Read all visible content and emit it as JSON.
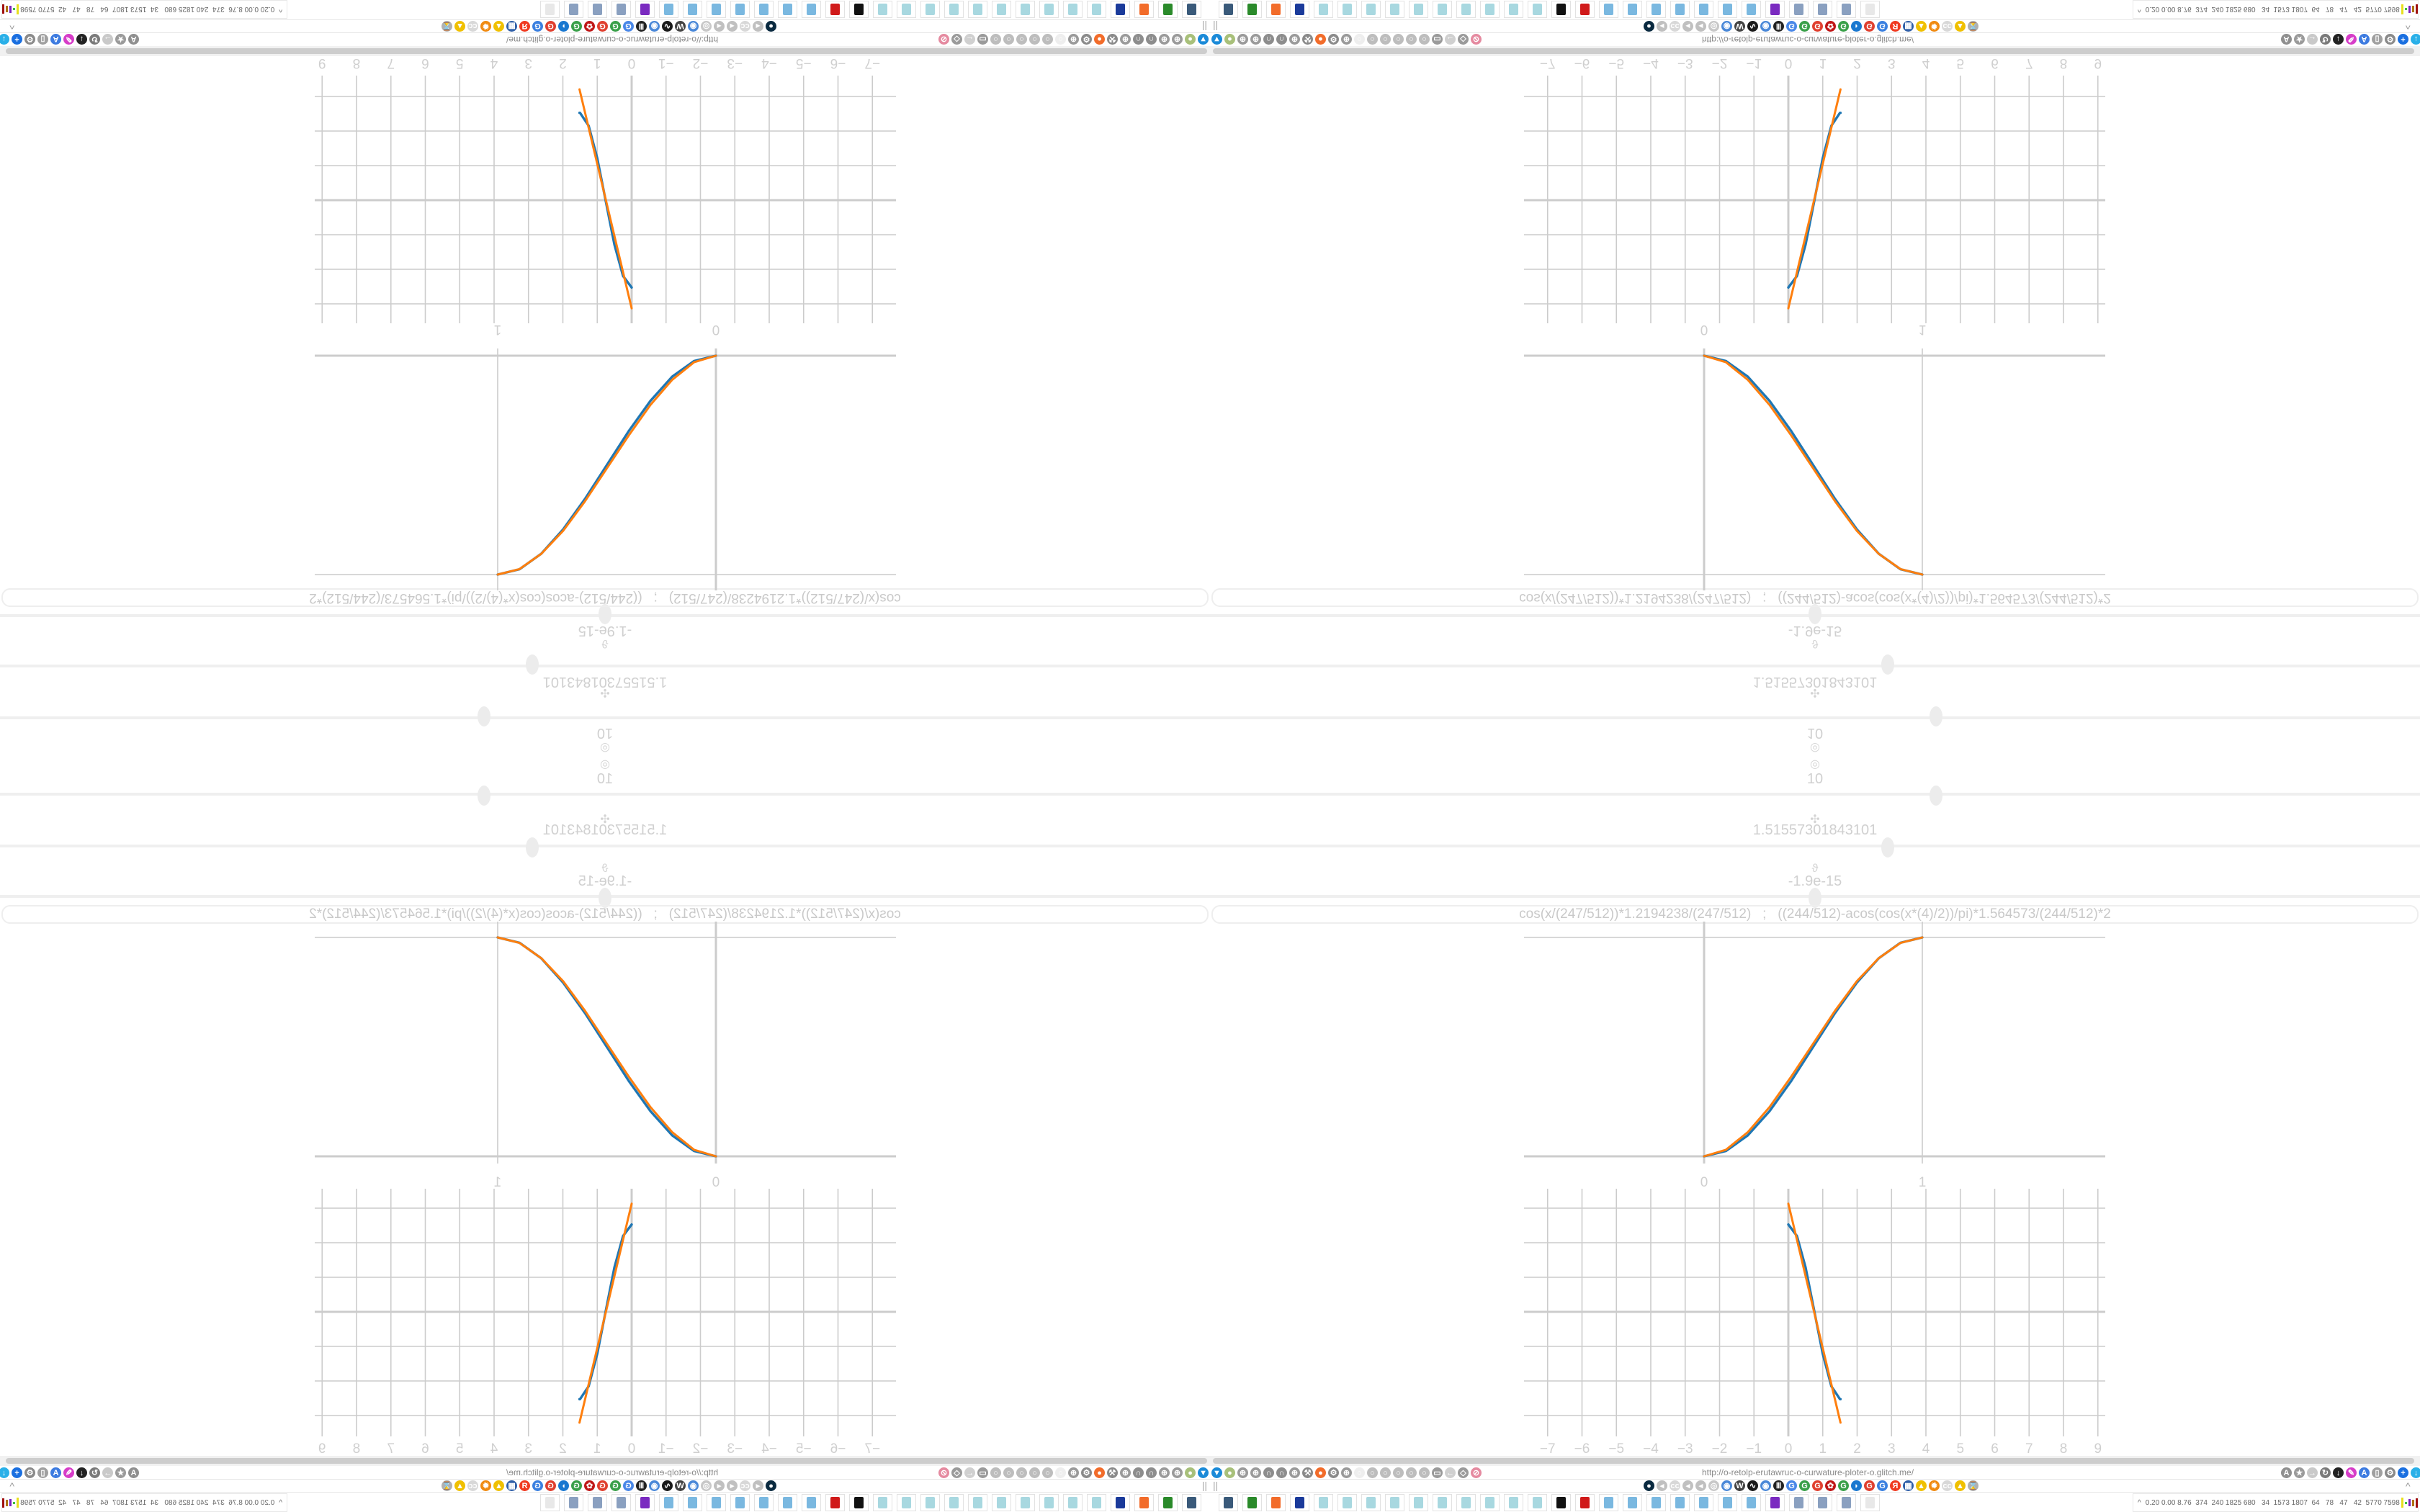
{
  "sliders": [
    {
      "icon": "target-icon",
      "glyph": "◎",
      "value": "10",
      "position": 0.6
    },
    {
      "icon": "clover-icon",
      "glyph": "✣",
      "value": "1.51557301843101",
      "position": 0.56
    },
    {
      "icon": "theta-icon",
      "glyph": "ϑ",
      "value": "-1.9e-15",
      "position": 0.5
    }
  ],
  "formula": "cos(x/(247/512))*1.2194238/(247/512)   ;   ((244/512)-acos(cos(x*(4)/2))/pi)*1.564573/(244/512)*2",
  "colors": {
    "series_blue": "#1f77b4",
    "series_orange": "#ff7f0e",
    "grid": "#cccccc",
    "label": "#cfcfcf"
  },
  "chart_data": [
    {
      "type": "line",
      "x_ticks": [
        "0",
        "1"
      ],
      "grid_x": [
        0,
        1
      ],
      "grid_y": [
        0,
        1
      ],
      "xlim": [
        -0.82,
        1.84
      ],
      "ylim": [
        -0.03,
        1.07
      ],
      "series": [
        {
          "color": "#1f77b4",
          "x": [
            0,
            0.1,
            0.2,
            0.3,
            0.4,
            0.5,
            0.6,
            0.7,
            0.8,
            0.9,
            1
          ],
          "y": [
            0,
            0.0245,
            0.0955,
            0.2061,
            0.3455,
            0.5,
            0.6545,
            0.7939,
            0.9045,
            0.9755,
            1
          ]
        },
        {
          "color": "#ff7f0e",
          "x": [
            0,
            0.1,
            0.2,
            0.3,
            0.4,
            0.5,
            0.6,
            0.7,
            0.8,
            0.9,
            1
          ],
          "y": [
            0,
            0.03,
            0.11,
            0.225,
            0.365,
            0.515,
            0.665,
            0.8,
            0.905,
            0.975,
            1
          ]
        }
      ]
    },
    {
      "type": "line",
      "x_ticks": [
        "−7",
        "−6",
        "−5",
        "−4",
        "−3",
        "−2",
        "−1",
        "0",
        "1",
        "2",
        "3",
        "4",
        "5",
        "6",
        "7",
        "8",
        "9"
      ],
      "xlim": [
        -7.8,
        9.1
      ],
      "ylim": [
        -3.6,
        3.6
      ],
      "grid_x": [
        -7,
        -6,
        -5,
        -4,
        -3,
        -2,
        -1,
        0,
        1,
        2,
        3,
        4,
        5,
        6,
        7,
        8,
        9
      ],
      "grid_y": [
        -3,
        -2,
        -1,
        0,
        1,
        2,
        3
      ],
      "series": [
        {
          "color": "#1f77b4",
          "x": [
            0,
            0.25,
            0.5,
            0.75,
            1.0,
            1.25,
            1.5,
            1.5156
          ],
          "y": [
            2.528,
            2.196,
            1.288,
            0.041,
            -1.216,
            -2.153,
            -2.526,
            -2.528
          ]
        },
        {
          "color": "#ff7f0e",
          "x": [
            0,
            1.5156
          ],
          "y": [
            3.129,
            -3.206
          ]
        }
      ]
    }
  ],
  "browser": {
    "url": "http://o-retolp-erutawruc-o-curwature-ploter-o.glitch.me/",
    "toolbar_left": [
      {
        "name": "funnel-icon",
        "glyph": "▼",
        "color": "#1a8ad8"
      },
      {
        "name": "green-addon-icon",
        "glyph": "●",
        "color": "#a8c07a"
      },
      {
        "name": "globe-icon",
        "glyph": "⊕",
        "color": "#9a9a9a"
      },
      {
        "name": "globe-icon",
        "glyph": "⊕",
        "color": "#9a9a9a"
      },
      {
        "name": "arc-icon",
        "glyph": "∩",
        "color": "#8d8d8d"
      },
      {
        "name": "arc-icon",
        "glyph": "∩",
        "color": "#8d8d8d"
      },
      {
        "name": "globe-icon",
        "glyph": "⊕",
        "color": "#9a9a9a"
      },
      {
        "name": "wrench-icon",
        "glyph": "⚒",
        "color": "#8a8a8a"
      },
      {
        "name": "firefox-icon",
        "glyph": "●",
        "color": "#f26c2a"
      },
      {
        "name": "gear-icon",
        "glyph": "⚙",
        "color": "#8a8a8a"
      },
      {
        "name": "globe-icon",
        "glyph": "⊕",
        "color": "#9a9a9a"
      },
      {
        "name": "faded-icon",
        "glyph": "○",
        "color": "#eeeeee"
      },
      {
        "name": "dot-icon",
        "glyph": "○",
        "color": "#bdbdbd"
      },
      {
        "name": "circle-icon",
        "glyph": "○",
        "color": "#bdbdbd"
      },
      {
        "name": "dot-icon",
        "glyph": "○",
        "color": "#bdbdbd"
      },
      {
        "name": "circle-icon",
        "glyph": "○",
        "color": "#bdbdbd"
      },
      {
        "name": "dot-icon",
        "glyph": "○",
        "color": "#bdbdbd"
      },
      {
        "name": "folder-icon",
        "glyph": "▭",
        "color": "#9a9a9a"
      },
      {
        "name": "back-arrow-icon",
        "glyph": "←",
        "color": "#d0d0d0"
      },
      {
        "name": "shield-icon",
        "glyph": "◇",
        "color": "#9a9a9a"
      },
      {
        "name": "lock-slash-icon",
        "glyph": "⊘",
        "color": "#e58aa0"
      }
    ],
    "toolbar_right": [
      {
        "name": "translate-icon",
        "glyph": "A",
        "color": "#8f8f8f"
      },
      {
        "name": "star-icon",
        "glyph": "★",
        "color": "#9a9a9a"
      },
      {
        "name": "forward-arrow-icon",
        "glyph": "→",
        "color": "#c9c9c9"
      },
      {
        "name": "reload-icon",
        "glyph": "↻",
        "color": "#7a7a7a"
      },
      {
        "name": "download-icon",
        "glyph": "↓",
        "color": "#222222"
      },
      {
        "name": "pen-icon",
        "glyph": "✎",
        "color": "#d63cc8"
      },
      {
        "name": "translate-blue-icon",
        "glyph": "A",
        "color": "#3d7be0"
      },
      {
        "name": "mouse-icon",
        "glyph": "▯",
        "color": "#a0a0a0"
      },
      {
        "name": "gear-icon",
        "glyph": "⚙",
        "color": "#8a8a8a"
      },
      {
        "name": "plus-icon",
        "glyph": "+",
        "color": "#1a6fe0"
      },
      {
        "name": "shield-cyan-icon",
        "glyph": "↓",
        "color": "#2ab0e8"
      },
      {
        "name": "red-circle-icon",
        "glyph": "●",
        "color": "#e01010"
      },
      {
        "name": "columns-icon",
        "glyph": "Ⅲ",
        "color": "#333333"
      },
      {
        "name": "globe-orange-icon",
        "glyph": "⊕",
        "color": "#e89030"
      },
      {
        "name": "archive-icon",
        "glyph": "▣",
        "color": "#8a8a8a"
      },
      {
        "name": "ublock-icon",
        "glyph": "uo",
        "color": "#a01010"
      },
      {
        "name": "shield-icon",
        "glyph": "◎",
        "color": "#a6b4c8"
      },
      {
        "name": "globe-icon",
        "glyph": "⊕",
        "color": "#a8a8a8"
      },
      {
        "name": "puzzle-icon",
        "glyph": "♙",
        "color": "#9a9a9a"
      },
      {
        "name": "wrench-icon",
        "glyph": "⚒",
        "color": "#9a9a9a"
      },
      {
        "name": "gear-icon",
        "glyph": "⚙",
        "color": "#9a9a9a"
      },
      {
        "name": "status-dot-icon",
        "glyph": "●",
        "color": "#20c0a0"
      }
    ],
    "bookmarks": [
      {
        "name": "dark-circle-icon",
        "glyph": "●",
        "color": "#0a2a40"
      },
      {
        "name": "speaker-icon",
        "glyph": "◂",
        "color": "#c0c0c0"
      },
      {
        "name": "cc-icon",
        "glyph": "cc",
        "color": "#d8d8d8"
      },
      {
        "name": "speaker-icon",
        "glyph": "◂",
        "color": "#c0c0c0"
      },
      {
        "name": "speaker-icon",
        "glyph": "◂",
        "color": "#c0c0c0"
      },
      {
        "name": "speaker-circle-icon",
        "glyph": "◎",
        "color": "#c8c8c8"
      },
      {
        "name": "blue-globe-icon",
        "glyph": "◉",
        "color": "#4a88d8"
      },
      {
        "name": "wikipedia-icon",
        "glyph": "W",
        "color": "#444444"
      },
      {
        "name": "wave-icon",
        "glyph": "∿",
        "color": "#1a1a1a"
      },
      {
        "name": "blue-globe-icon",
        "glyph": "◉",
        "color": "#4a88d8"
      },
      {
        "name": "columns-icon",
        "glyph": "Ⅲ",
        "color": "#222222"
      },
      {
        "name": "google-translate-icon",
        "glyph": "G",
        "color": "#4a88e8"
      },
      {
        "name": "google-icon",
        "glyph": "G",
        "color": "#3aa04a"
      },
      {
        "name": "google-icon",
        "glyph": "G",
        "color": "#e04030"
      },
      {
        "name": "red-flower-icon",
        "glyph": "✿",
        "color": "#c01818"
      },
      {
        "name": "google-icon",
        "glyph": "G",
        "color": "#3aa04a"
      },
      {
        "name": "blue-bird-icon",
        "glyph": "◗",
        "color": "#1a78d0"
      },
      {
        "name": "google-icon",
        "glyph": "G",
        "color": "#e04030"
      },
      {
        "name": "google-icon",
        "glyph": "G",
        "color": "#3a80e0"
      },
      {
        "name": "yandex-icon",
        "glyph": "Я",
        "color": "#f03a20"
      },
      {
        "name": "grid-icon",
        "glyph": "▦",
        "color": "#3060a8"
      },
      {
        "name": "image-icon",
        "glyph": "▲",
        "color": "#f0c000"
      },
      {
        "name": "sun-icon",
        "glyph": "✹",
        "color": "#f08a10"
      },
      {
        "name": "cc-icon",
        "glyph": "cc",
        "color": "#d8d8d8"
      },
      {
        "name": "image-icon",
        "glyph": "▲",
        "color": "#f0c000"
      },
      {
        "name": "hourglass-icon",
        "glyph": "⌛",
        "color": "#b0b0b0"
      }
    ],
    "pause_glyph": "||",
    "collapse_glyph": "^"
  },
  "taskbar": {
    "apps": [
      {
        "name": "monitor-app",
        "color": "#3a5a7a"
      },
      {
        "name": "terminal-app",
        "color": "#2a8a2a"
      },
      {
        "name": "firefox-app",
        "color": "#f26c2a"
      },
      {
        "name": "floppy-app",
        "color": "#1a3a9a"
      },
      {
        "name": "notepad-app",
        "color": "#a8d8e0"
      },
      {
        "name": "notepad-app",
        "color": "#a8d8e0"
      },
      {
        "name": "notepad-app",
        "color": "#a8d8e0"
      },
      {
        "name": "notepad-app",
        "color": "#a8d8e0"
      },
      {
        "name": "notepad-app",
        "color": "#a8d8e0"
      },
      {
        "name": "notepad-app",
        "color": "#a8d8e0"
      },
      {
        "name": "notepad-app",
        "color": "#a8d8e0"
      },
      {
        "name": "notepad-app",
        "color": "#a8d8e0"
      },
      {
        "name": "notepad-app",
        "color": "#a8d8e0"
      },
      {
        "name": "notepad-app",
        "color": "#a8d8e0"
      },
      {
        "name": "inkscape-app",
        "color": "#111111"
      },
      {
        "name": "red-gear-app",
        "color": "#d01a1a"
      },
      {
        "name": "calculator-app",
        "color": "#7ab8e0"
      },
      {
        "name": "calculator-app",
        "color": "#7ab8e0"
      },
      {
        "name": "calculator-app",
        "color": "#7ab8e0"
      },
      {
        "name": "calculator-app",
        "color": "#7ab8e0"
      },
      {
        "name": "calculator-app",
        "color": "#7ab8e0"
      },
      {
        "name": "calculator-app",
        "color": "#7ab8e0"
      },
      {
        "name": "calculator-app",
        "color": "#7ab8e0"
      },
      {
        "name": "purple-app",
        "color": "#7a2ac0"
      },
      {
        "name": "scroll-app",
        "color": "#8aa0c0"
      },
      {
        "name": "scroll-app",
        "color": "#8aa0c0"
      },
      {
        "name": "scroll-app",
        "color": "#8aa0c0"
      },
      {
        "name": "faded-app",
        "color": "#e8e8e8"
      }
    ],
    "tray_caret": "^",
    "tray_stats": "0.20 0.00 8.76  374  240 1825 680   34  1573 1807  64   78   47   42  5770 7598"
  }
}
